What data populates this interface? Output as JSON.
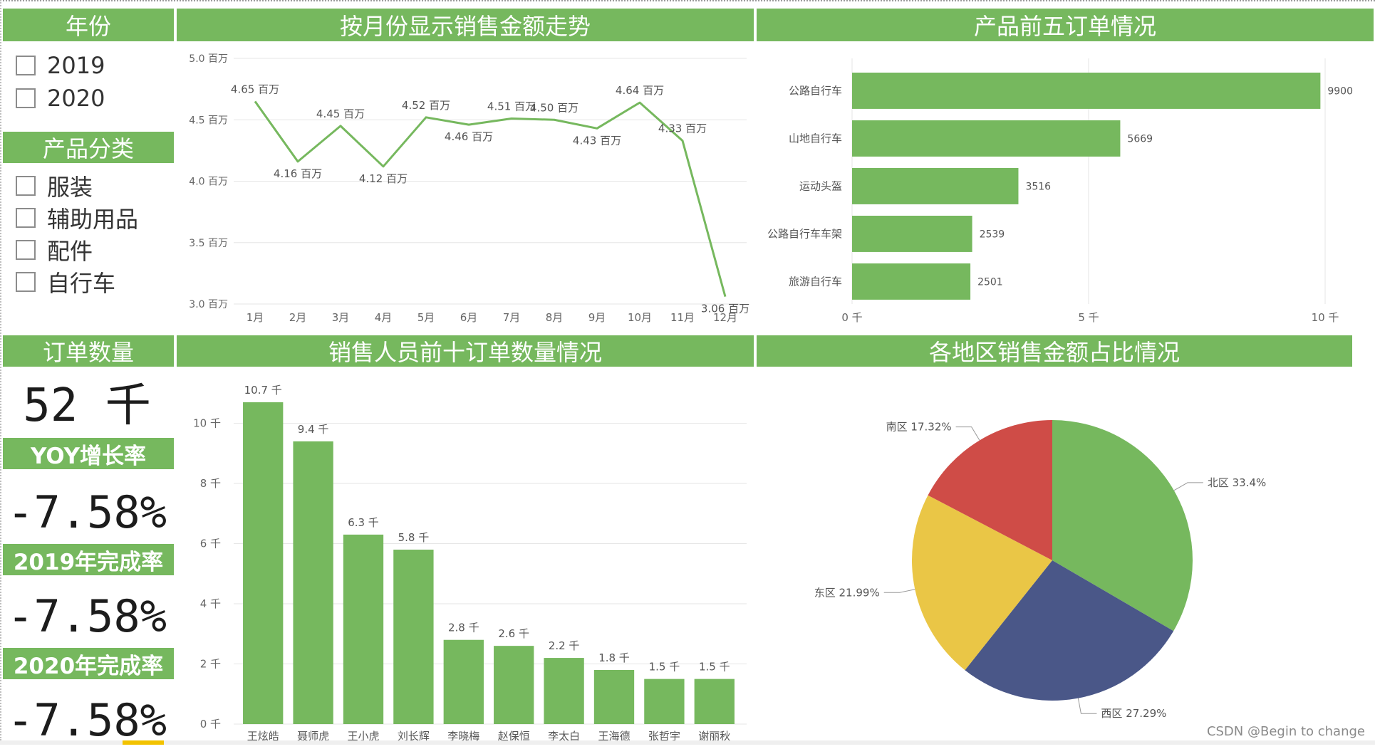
{
  "colors": {
    "green": "#76b85e",
    "blue": "#4a5788",
    "yellow": "#eac646",
    "red": "#cf4c47"
  },
  "slicers": {
    "year": {
      "title": "年份",
      "items": [
        "2019",
        "2020"
      ]
    },
    "category": {
      "title": "产品分类",
      "items": [
        "服装",
        "辅助用品",
        "配件",
        "自行车"
      ]
    }
  },
  "kpis": {
    "order_count": {
      "title": "订单数量",
      "value": "52 千"
    },
    "yoy": {
      "title": "YOY增长率",
      "value": "-7.58%"
    },
    "completion_2019": {
      "title": "2019年完成率",
      "value": "-7.58%"
    },
    "completion_2020": {
      "title": "2020年完成率",
      "value": "-7.58%"
    }
  },
  "chart_data": [
    {
      "id": "monthly_sales",
      "type": "line",
      "title": "按月份显示销售金额走势",
      "categories": [
        "1月",
        "2月",
        "3月",
        "4月",
        "5月",
        "6月",
        "7月",
        "8月",
        "9月",
        "10月",
        "11月",
        "12月"
      ],
      "values": [
        4.65,
        4.16,
        4.45,
        4.12,
        4.52,
        4.46,
        4.51,
        4.5,
        4.43,
        4.64,
        4.33,
        3.06
      ],
      "data_labels": [
        "4.65 百万",
        "4.16 百万",
        "4.45 百万",
        "4.12 百万",
        "4.52 百万",
        "4.46 百万",
        "4.51 百万",
        "4.50 百万",
        "4.43 百万",
        "4.64 百万",
        "4.33 百万",
        "3.06 百万"
      ],
      "ylim": [
        3.0,
        5.0
      ],
      "yticks": [
        3.0,
        3.5,
        4.0,
        4.5,
        5.0
      ],
      "ytick_labels": [
        "3.0 百万",
        "3.5 百万",
        "4.0 百万",
        "4.5 百万",
        "5.0 百万"
      ],
      "grid": true
    },
    {
      "id": "top5_products",
      "type": "bar",
      "orientation": "horizontal",
      "title": "产品前五订单情况",
      "categories": [
        "公路自行车",
        "山地自行车",
        "运动头盔",
        "公路自行车车架",
        "旅游自行车"
      ],
      "values": [
        9900,
        5669,
        3516,
        2539,
        2501
      ],
      "data_labels": [
        "9900",
        "5669",
        "3516",
        "2539",
        "2501"
      ],
      "xlim": [
        0,
        10000
      ],
      "xticks": [
        0,
        5000,
        10000
      ],
      "xtick_labels": [
        "0 千",
        "5 千",
        "10 千"
      ],
      "grid": true
    },
    {
      "id": "top10_salespeople",
      "type": "bar",
      "title": "销售人员前十订单数量情况",
      "categories": [
        "王炫皓",
        "聂师虎",
        "王小虎",
        "刘长辉",
        "李晓梅",
        "赵保恒",
        "李太白",
        "王海德",
        "张哲宇",
        "谢丽秋"
      ],
      "values": [
        10700,
        9400,
        6300,
        5800,
        2800,
        2600,
        2200,
        1800,
        1500,
        1500
      ],
      "data_labels": [
        "10.7 千",
        "9.4 千",
        "6.3 千",
        "5.8 千",
        "2.8 千",
        "2.6 千",
        "2.2 千",
        "1.8 千",
        "1.5 千",
        "1.5 千"
      ],
      "ylim": [
        0,
        10700
      ],
      "yticks": [
        0,
        2000,
        4000,
        6000,
        8000,
        10000
      ],
      "ytick_labels": [
        "0 千",
        "2 千",
        "4 千",
        "6 千",
        "8 千",
        "10 千"
      ],
      "grid": true
    },
    {
      "id": "region_share",
      "type": "pie",
      "title": "各地区销售金额占比情况",
      "slices": [
        {
          "label": "北区 33.4%",
          "value": 33.4,
          "color": "#76b85e"
        },
        {
          "label": "西区 27.29%",
          "value": 27.29,
          "color": "#4a5788"
        },
        {
          "label": "东区 21.99%",
          "value": 21.99,
          "color": "#eac646"
        },
        {
          "label": "南区 17.32%",
          "value": 17.32,
          "color": "#cf4c47"
        }
      ]
    }
  ],
  "watermark": "CSDN @Begin to change"
}
